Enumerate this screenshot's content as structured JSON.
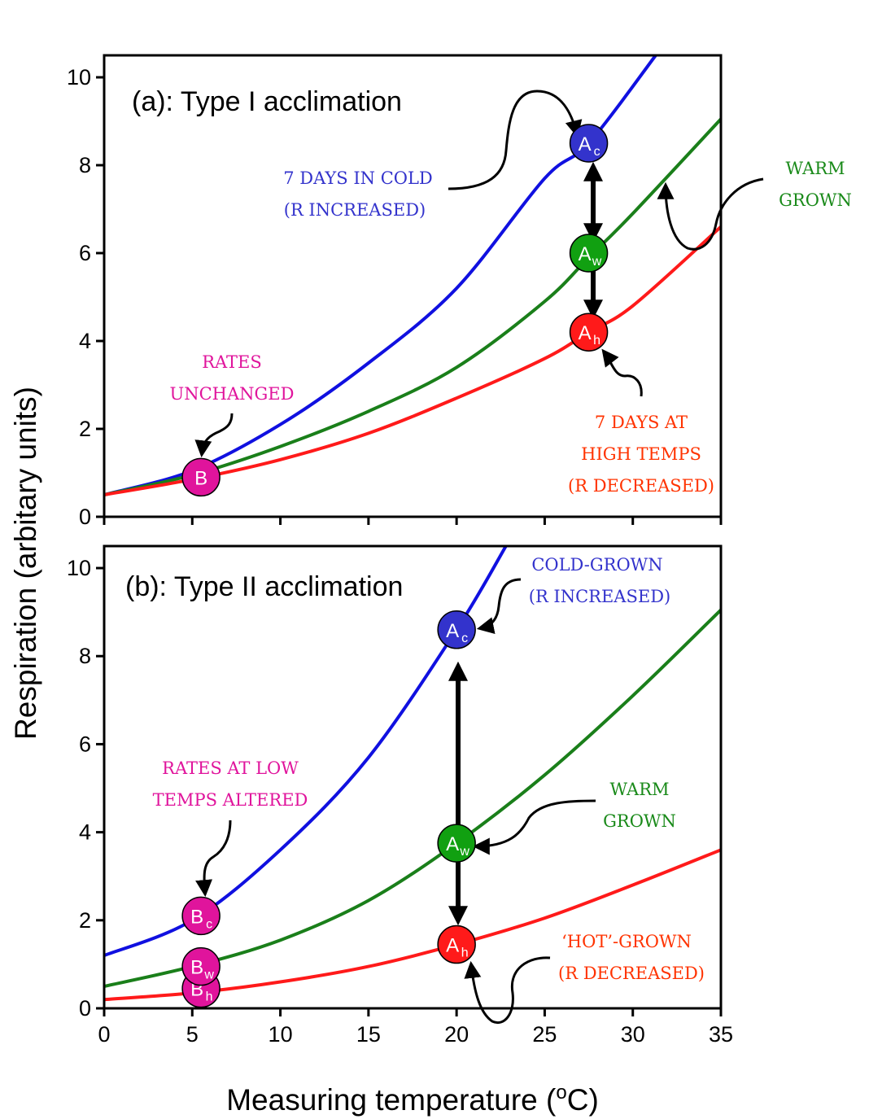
{
  "chart_data": [
    {
      "type": "line",
      "title": "(a): Type I acclimation",
      "xlabel": "Measuring temperature (oC)",
      "ylabel": "Respiration (arbitary units)",
      "xlim": [
        0,
        35
      ],
      "ylim": [
        0,
        10.5
      ],
      "xticks": [
        0,
        5,
        10,
        15,
        20,
        25,
        30,
        35
      ],
      "yticks": [
        0,
        2,
        4,
        6,
        8,
        10
      ],
      "series": [
        {
          "color": "#1010e0",
          "x": [
            0,
            5,
            10,
            15,
            20,
            25,
            27.5,
            31.3
          ],
          "y": [
            0.5,
            1.05,
            2.1,
            3.5,
            5.2,
            7.7,
            8.5,
            10.5
          ]
        },
        {
          "color": "#1a7f1a",
          "x": [
            0,
            5,
            10,
            15,
            20,
            25,
            27.5,
            30,
            35
          ],
          "y": [
            0.5,
            0.95,
            1.6,
            2.4,
            3.4,
            4.9,
            5.9,
            6.9,
            9.05
          ]
        },
        {
          "color": "#ff1a1a",
          "x": [
            0,
            5,
            10,
            15,
            20,
            25,
            27.5,
            30,
            35
          ],
          "y": [
            0.5,
            0.85,
            1.3,
            1.9,
            2.7,
            3.6,
            4.2,
            4.8,
            6.6
          ]
        }
      ],
      "markers": [
        {
          "label": "B",
          "sub": "",
          "x": 5.5,
          "y": 0.9,
          "color": "#e0149c"
        },
        {
          "label": "A",
          "sub": "c",
          "x": 27.5,
          "y": 8.5,
          "color": "#3333cc"
        },
        {
          "label": "A",
          "sub": "w",
          "x": 27.5,
          "y": 6.0,
          "color": "#11a011"
        },
        {
          "label": "A",
          "sub": "h",
          "x": 27.5,
          "y": 4.2,
          "color": "#ff1a1a"
        }
      ],
      "annotations": [
        {
          "lines": [
            "7 DAYS IN COLD",
            "(R INCREASED)"
          ],
          "color": "#3333cc"
        },
        {
          "lines": [
            "WARM",
            "GROWN"
          ],
          "color": "#1a8a1a"
        },
        {
          "lines": [
            "RATES",
            "UNCHANGED"
          ],
          "color": "#e0149c"
        },
        {
          "lines": [
            "7 DAYS AT",
            "HIGH TEMPS",
            "(R DECREASED)"
          ],
          "color": "#ff3300"
        }
      ]
    },
    {
      "type": "line",
      "title": "(b): Type II acclimation",
      "xlabel": "Measuring temperature (oC)",
      "ylabel": "Respiration (arbitary units)",
      "xlim": [
        0,
        35
      ],
      "ylim": [
        0,
        10.5
      ],
      "xticks": [
        0,
        5,
        10,
        15,
        20,
        25,
        30,
        35
      ],
      "yticks": [
        0,
        2,
        4,
        6,
        8,
        10
      ],
      "series": [
        {
          "color": "#1010e0",
          "x": [
            0,
            5,
            10,
            15,
            20,
            22.8
          ],
          "y": [
            1.2,
            2.0,
            3.6,
            5.7,
            8.6,
            10.5
          ]
        },
        {
          "color": "#1a7f1a",
          "x": [
            0,
            5,
            10,
            15,
            20,
            25,
            30,
            35
          ],
          "y": [
            0.5,
            0.95,
            1.55,
            2.45,
            3.75,
            5.3,
            7.1,
            9.05
          ]
        },
        {
          "color": "#ff1a1a",
          "x": [
            0,
            5,
            10,
            15,
            20,
            25,
            30,
            35
          ],
          "y": [
            0.2,
            0.35,
            0.6,
            0.95,
            1.45,
            2.05,
            2.8,
            3.6
          ]
        }
      ],
      "markers": [
        {
          "label": "B",
          "sub": "h",
          "x": 5.5,
          "y": 0.45,
          "color": "#e0149c"
        },
        {
          "label": "B",
          "sub": "w",
          "x": 5.5,
          "y": 0.95,
          "color": "#e0149c"
        },
        {
          "label": "B",
          "sub": "c",
          "x": 5.5,
          "y": 2.1,
          "color": "#e0149c"
        },
        {
          "label": "A",
          "sub": "c",
          "x": 20,
          "y": 8.6,
          "color": "#3333cc"
        },
        {
          "label": "A",
          "sub": "w",
          "x": 20,
          "y": 3.75,
          "color": "#11a011"
        },
        {
          "label": "A",
          "sub": "h",
          "x": 20,
          "y": 1.45,
          "color": "#ff1a1a"
        }
      ],
      "annotations": [
        {
          "lines": [
            "COLD-GROWN",
            "(R INCREASED)"
          ],
          "color": "#3333cc"
        },
        {
          "lines": [
            "RATES AT LOW",
            "TEMPS ALTERED"
          ],
          "color": "#e0149c"
        },
        {
          "lines": [
            "WARM",
            "GROWN"
          ],
          "color": "#1a8a1a"
        },
        {
          "lines": [
            "‘HOT’-GROWN",
            "(R DECREASED)"
          ],
          "color": "#ff3300"
        }
      ]
    }
  ]
}
